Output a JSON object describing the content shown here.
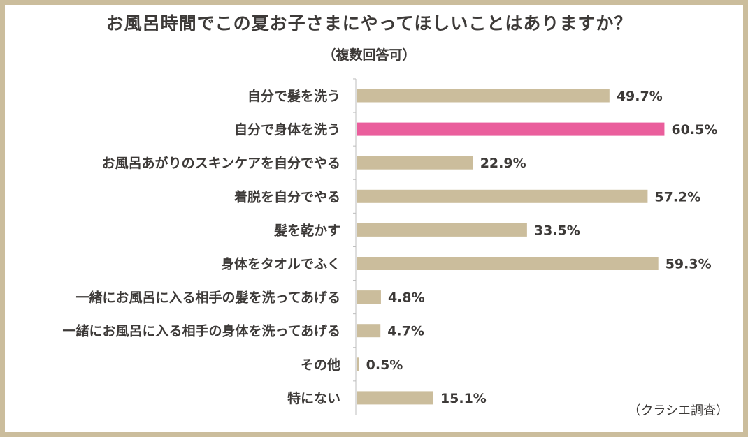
{
  "chart_data": {
    "type": "bar",
    "orientation": "horizontal",
    "title": "お風呂時間でこの夏お子さまにやってほしいことはありますか？",
    "subtitle": "（複数回答可）",
    "source": "（クラシエ調査）",
    "categories": [
      "自分で髪を洗う",
      "自分で身体を洗う",
      "お風呂あがりのスキンケアを自分でやる",
      "着脱を自分でやる",
      "髪を乾かす",
      "身体をタオルでふく",
      "一緒にお風呂に入る相手の髪を洗ってあげる",
      "一緒にお風呂に入る相手の身体を洗ってあげる",
      "その他",
      "特にない"
    ],
    "values": [
      49.7,
      60.5,
      22.9,
      57.2,
      33.5,
      59.3,
      4.8,
      4.7,
      0.5,
      15.1
    ],
    "value_labels": [
      "49.7%",
      "60.5%",
      "22.9%",
      "57.2%",
      "33.5%",
      "59.3%",
      "4.8%",
      "4.7%",
      "0.5%",
      "15.1%"
    ],
    "highlight_index": 1,
    "colors": {
      "bar": "#cbbd9c",
      "highlight": "#ea5e9c",
      "frame": "#cbbd9c",
      "text": "#3d3a38",
      "axis": "#bdbdbd"
    },
    "xlim": [
      0,
      70
    ],
    "grid": false,
    "legend": "none"
  }
}
